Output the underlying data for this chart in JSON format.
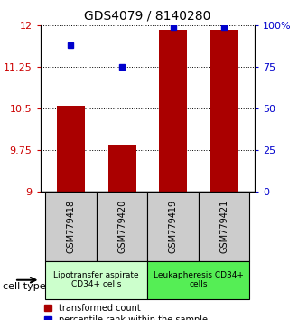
{
  "title": "GDS4079 / 8140280",
  "samples": [
    "GSM779418",
    "GSM779420",
    "GSM779419",
    "GSM779421"
  ],
  "red_values": [
    10.55,
    9.85,
    11.92,
    11.92
  ],
  "blue_values": [
    88,
    75,
    99,
    99
  ],
  "y_min": 9,
  "y_max": 12,
  "y_ticks": [
    9,
    9.75,
    10.5,
    11.25,
    12
  ],
  "y_tick_labels": [
    "9",
    "9.75",
    "10.5",
    "11.25",
    "12"
  ],
  "y2_ticks": [
    0,
    25,
    50,
    75,
    100
  ],
  "y2_tick_labels": [
    "0",
    "25",
    "50",
    "75",
    "100%"
  ],
  "bar_color": "#AA0000",
  "dot_color": "#0000CC",
  "groups": [
    {
      "label": "Lipotransfer aspirate\nCD34+ cells",
      "color": "#CCFFCC",
      "start": 0,
      "end": 2
    },
    {
      "label": "Leukapheresis CD34+\ncells",
      "color": "#55EE55",
      "start": 2,
      "end": 4
    }
  ],
  "sample_box_color": "#CCCCCC",
  "cell_type_label": "cell type",
  "legend_red_label": "transformed count",
  "legend_blue_label": "percentile rank within the sample",
  "bar_width": 0.55,
  "background_color": "#FFFFFF"
}
